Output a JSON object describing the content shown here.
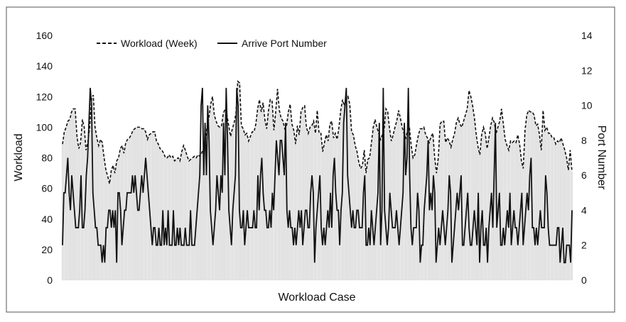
{
  "chart_data": {
    "type": "line",
    "xlabel": "Workload Case",
    "ylabel_left": "Workload",
    "ylabel_right": "Port Number",
    "ylim_left": [
      0,
      160
    ],
    "yticks_left": [
      "0",
      "20",
      "40",
      "60",
      "80",
      "100",
      "120",
      "140",
      "160"
    ],
    "ylim_right": [
      0,
      14
    ],
    "yticks_right": [
      "0",
      "2",
      "4",
      "6",
      "8",
      "10",
      "12",
      "14"
    ],
    "legend_position": "top-left",
    "grid": false,
    "colors": {
      "line": "#111111",
      "fill": "#e6e6e6",
      "fill_edge": "#cfcfcf"
    },
    "series": [
      {
        "name": "Workload (Week)",
        "axis": "left",
        "style": "dashed",
        "values": [
          89,
          97,
          100,
          104,
          105,
          110,
          112,
          112,
          94,
          86,
          90,
          105,
          100,
          85,
          90,
          100,
          118,
          121,
          100,
          93,
          88,
          92,
          90,
          80,
          72,
          68,
          63,
          72,
          75,
          70,
          78,
          80,
          86,
          88,
          83,
          90,
          92,
          93,
          95,
          98,
          99,
          100,
          100,
          100,
          99,
          99,
          97,
          92,
          95,
          96,
          97,
          97,
          91,
          89,
          86,
          85,
          83,
          80,
          80,
          82,
          80,
          81,
          78,
          79,
          80,
          78,
          84,
          88,
          85,
          81,
          78,
          79,
          80,
          81,
          80,
          82,
          81,
          83,
          86,
          91,
          100,
          106,
          115,
          120,
          108,
          104,
          101,
          100,
          101,
          109,
          112,
          108,
          101,
          94,
          99,
          103,
          109,
          130,
          129,
          101,
          99,
          95,
          96,
          91,
          94,
          97,
          97,
          102,
          112,
          118,
          110,
          116,
          105,
          99,
          111,
          118,
          117,
          98,
          110,
          125,
          111,
          106,
          104,
          99,
          101,
          110,
          115,
          102,
          98,
          89,
          101,
          95,
          110,
          113,
          114,
          100,
          96,
          100,
          101,
          104,
          96,
          111,
          96,
          96,
          84,
          90,
          95,
          91,
          102,
          104,
          93,
          96,
          92,
          100,
          111,
          118,
          114,
          118,
          120,
          115,
          97,
          95,
          88,
          84,
          77,
          73,
          75,
          85,
          70,
          79,
          80,
          90,
          100,
          105,
          100,
          96,
          92,
          95,
          98,
          112,
          110,
          99,
          91,
          95,
          100,
          104,
          111,
          106,
          100,
          96,
          93,
          98,
          100,
          88,
          80,
          82,
          89,
          95,
          99,
          99,
          100,
          95,
          93,
          90,
          94,
          96,
          80,
          70,
          80,
          102,
          104,
          104,
          90,
          93,
          91,
          87,
          92,
          96,
          103,
          106,
          102,
          100,
          104,
          108,
          112,
          124,
          120,
          114,
          106,
          95,
          87,
          82,
          95,
          100,
          96,
          86,
          93,
          101,
          106,
          103,
          96,
          100,
          104,
          112,
          102,
          92,
          88,
          85,
          91,
          90,
          91,
          90,
          95,
          89,
          78,
          73,
          98,
          108,
          111,
          110,
          110,
          108,
          101,
          102,
          95,
          85,
          111,
          98,
          100,
          96,
          96,
          93,
          93,
          89,
          91,
          90,
          93,
          89,
          85,
          80,
          72,
          85,
          71
        ]
      },
      {
        "name": "Arrive Port Number",
        "axis": "right",
        "style": "solid",
        "values": [
          2,
          5,
          5,
          6,
          7,
          5,
          4,
          6,
          5,
          4,
          3,
          3,
          3,
          4,
          6,
          3,
          3,
          4,
          6,
          7,
          9,
          11,
          10,
          5,
          4,
          3,
          3,
          2,
          2,
          2,
          1,
          2,
          1,
          3,
          3,
          4,
          4,
          3,
          4,
          3,
          4,
          1,
          5,
          5,
          4,
          2,
          3,
          4,
          4,
          5,
          5,
          5,
          5,
          6,
          5,
          6,
          5,
          4,
          4,
          5,
          6,
          5,
          6,
          7,
          6,
          5,
          4,
          3,
          2,
          3,
          3,
          2,
          2,
          3,
          2,
          2,
          4,
          2,
          3,
          2,
          4,
          2,
          2,
          2,
          4,
          2,
          2,
          3,
          2,
          3,
          2,
          2,
          2,
          3,
          2,
          2,
          2,
          4,
          2,
          2,
          2,
          3,
          4,
          5,
          6,
          10,
          11,
          6,
          9,
          6,
          10,
          8,
          4,
          3,
          2,
          3,
          4,
          6,
          5,
          4,
          6,
          5,
          9,
          6,
          11,
          8,
          4,
          3,
          2,
          4,
          5,
          6,
          11,
          10,
          4,
          3,
          3,
          4,
          2,
          3,
          4,
          3,
          3,
          3,
          3,
          4,
          3,
          3,
          6,
          4,
          6,
          7,
          5,
          4,
          4,
          3,
          3,
          4,
          3,
          5,
          4,
          6,
          8,
          7,
          6,
          8,
          8,
          7,
          6,
          9,
          4,
          3,
          4,
          3,
          3,
          2,
          3,
          2,
          3,
          4,
          3,
          4,
          2,
          3,
          4,
          4,
          3,
          3,
          5,
          6,
          5,
          1,
          3,
          4,
          5,
          6,
          3,
          2,
          3,
          2,
          3,
          4,
          3,
          5,
          3,
          6,
          7,
          5,
          4,
          4,
          2,
          4,
          5,
          9,
          10,
          11,
          6,
          5,
          4,
          3,
          4,
          3,
          3,
          4,
          4,
          3,
          3,
          3,
          5,
          6,
          2,
          2,
          3,
          2,
          4,
          3,
          2,
          3,
          4,
          5,
          9,
          2,
          4,
          11,
          4,
          3,
          2,
          3,
          5,
          4,
          3,
          3,
          3,
          4,
          3,
          2,
          3,
          4,
          5,
          9,
          6,
          7,
          11,
          6,
          3,
          2,
          3,
          3,
          3,
          5,
          4,
          1,
          2,
          2,
          4,
          5,
          6,
          8,
          4,
          5,
          4,
          6,
          5,
          1,
          2,
          3,
          2,
          3,
          4,
          3,
          2,
          3,
          4,
          6,
          5,
          1,
          2,
          3,
          4,
          5,
          4,
          5,
          6,
          2,
          2,
          3,
          4,
          5,
          3,
          2,
          2,
          3,
          4,
          3,
          2,
          5,
          1,
          3,
          4,
          2,
          2,
          3,
          1,
          3,
          4,
          5,
          3,
          6,
          9,
          3,
          4,
          5,
          2,
          2,
          3,
          2,
          3,
          4,
          3,
          5,
          2,
          3,
          4,
          3,
          3,
          2,
          3,
          4,
          5,
          2,
          3,
          4,
          5,
          4,
          6,
          7,
          3,
          3,
          2,
          3,
          2,
          3,
          4,
          3,
          3,
          3,
          6,
          5,
          3,
          2,
          2,
          2,
          2,
          2,
          2,
          3,
          3,
          1,
          2,
          3,
          1,
          1,
          2,
          2,
          2,
          1,
          4
        ],
        "_note": "ignored"
      }
    ]
  }
}
